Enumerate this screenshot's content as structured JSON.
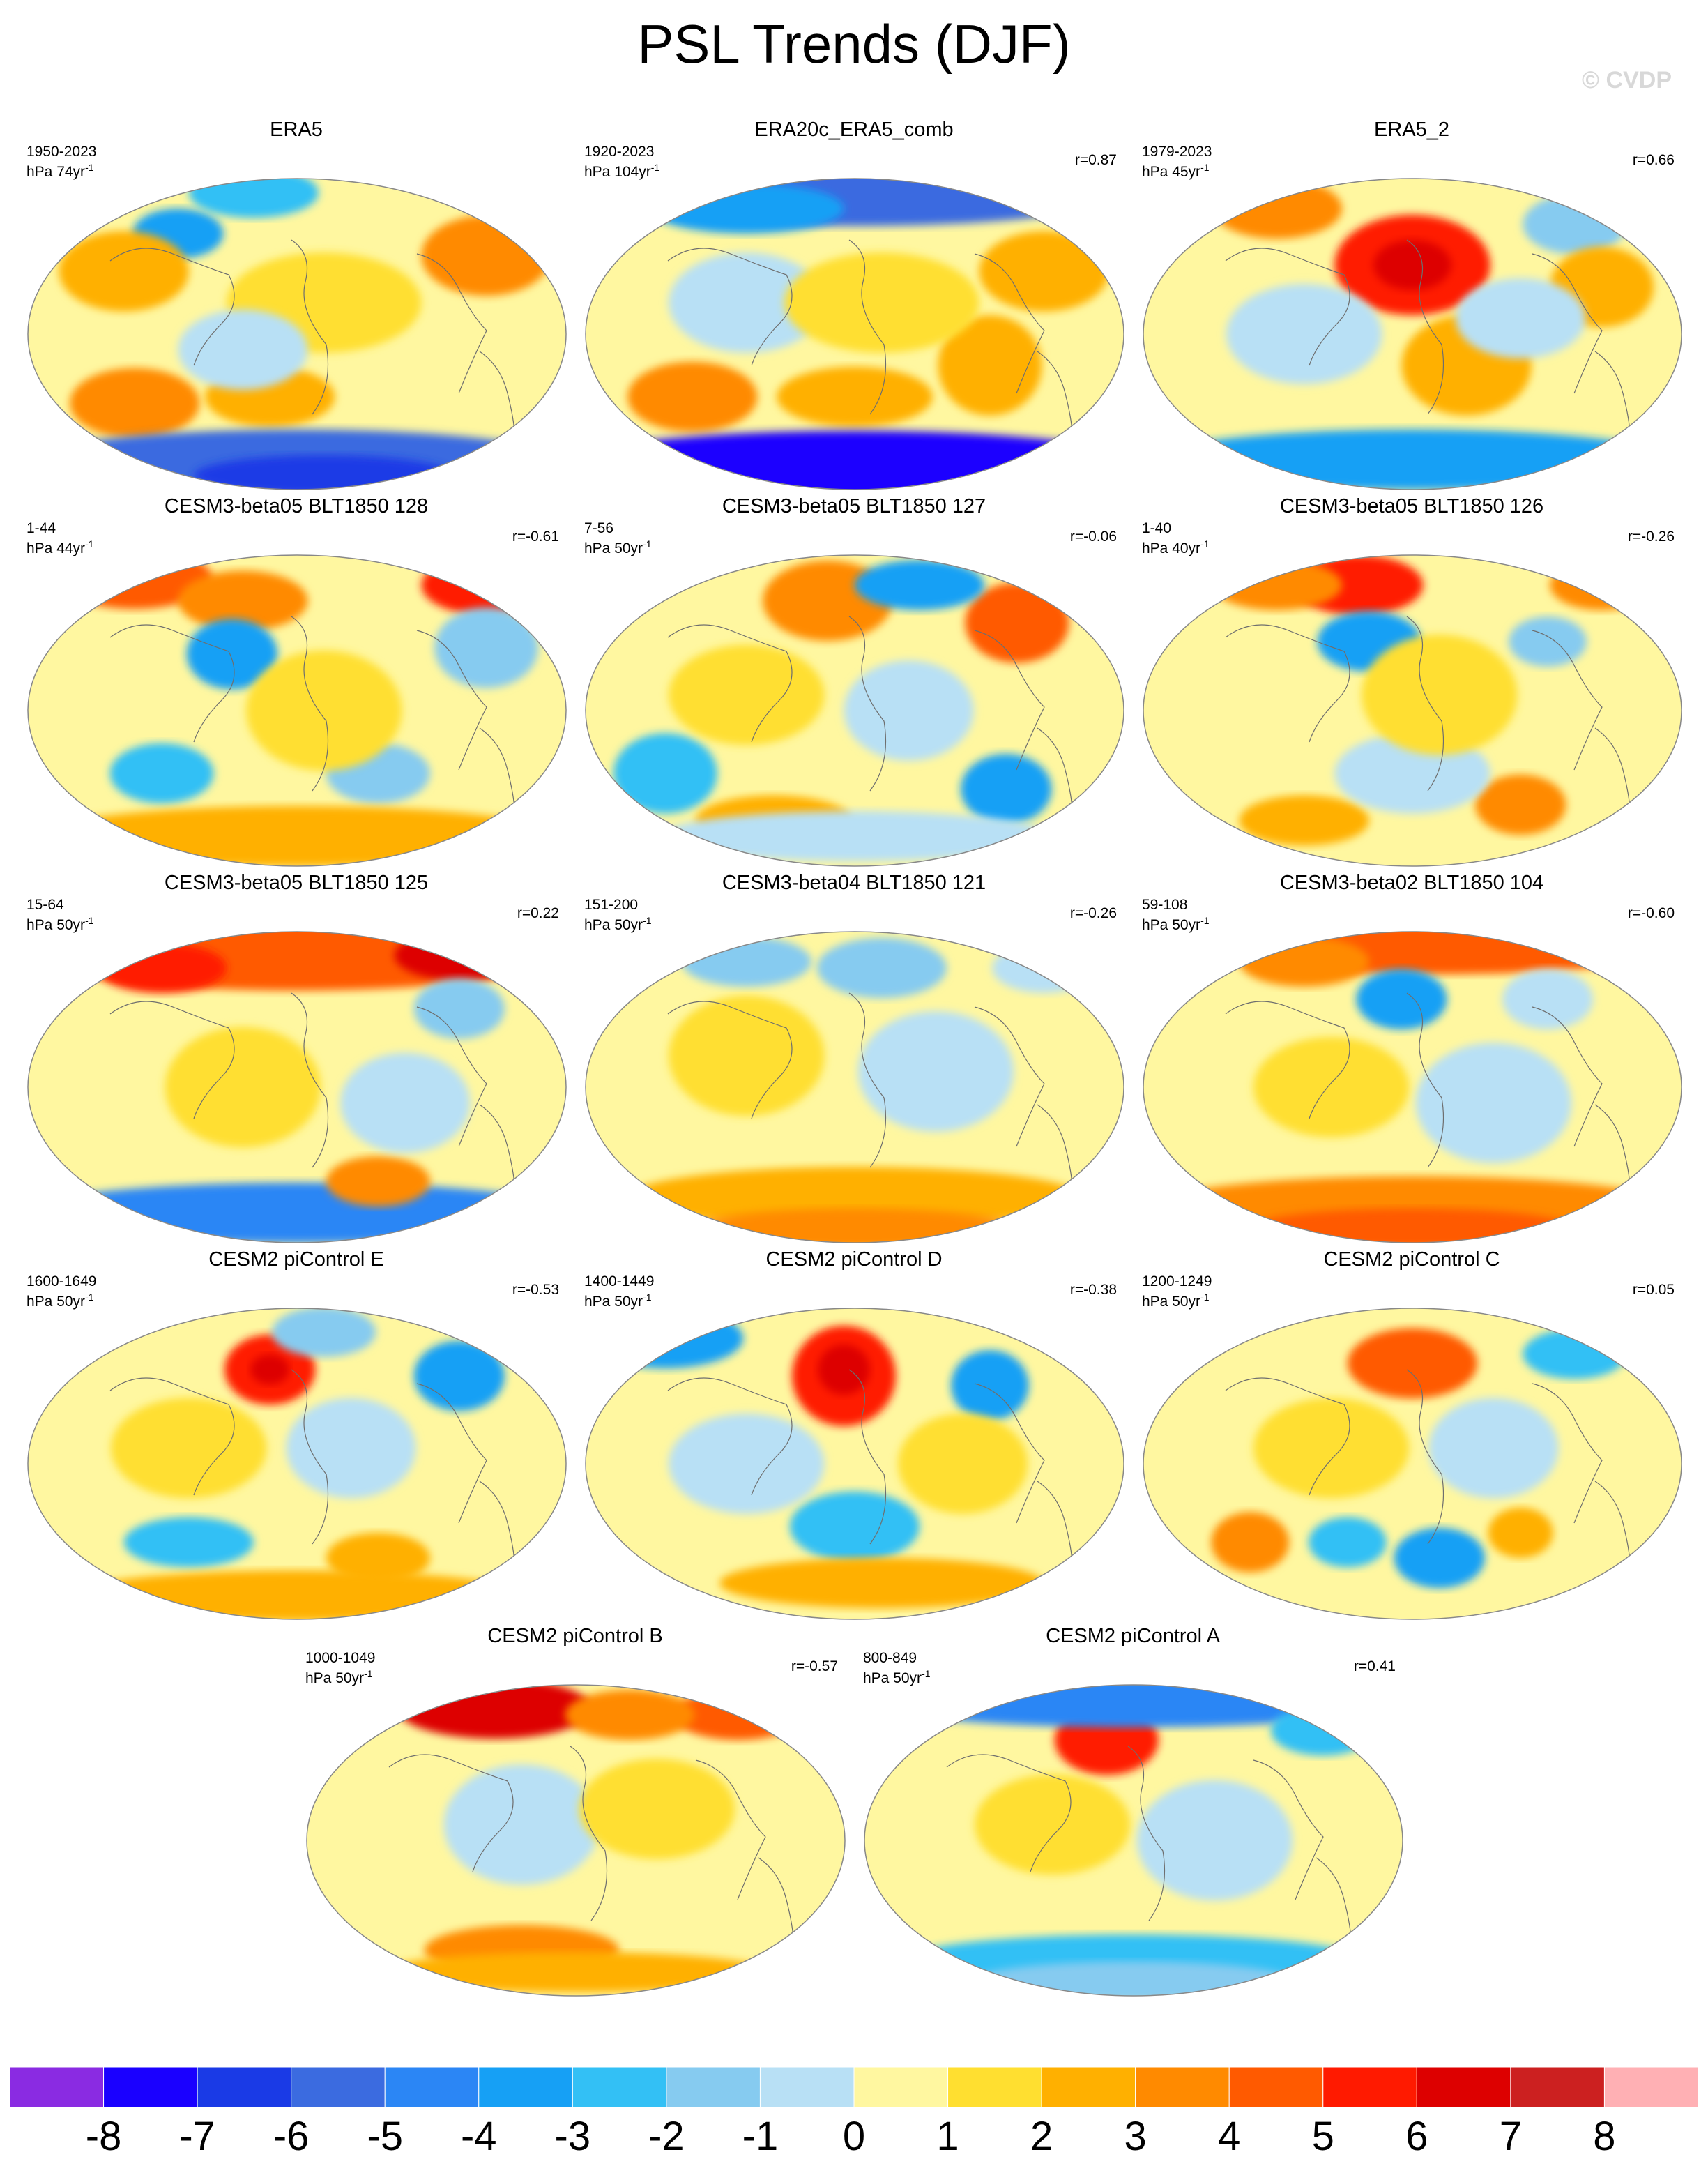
{
  "title": "PSL Trends (DJF)",
  "credit": "© CVDP",
  "panels": [
    {
      "title": "ERA5",
      "years": "1950-2023",
      "units_prefix": "hPa 74yr",
      "r": "",
      "blobs": [
        [
          0.28,
          0.18,
          0.07,
          0.05,
          -4
        ],
        [
          0.42,
          0.05,
          0.1,
          0.05,
          -3
        ],
        [
          0.85,
          0.25,
          0.1,
          0.08,
          3
        ],
        [
          0.18,
          0.3,
          0.1,
          0.08,
          2
        ],
        [
          0.2,
          0.72,
          0.1,
          0.07,
          3
        ],
        [
          0.45,
          0.7,
          0.1,
          0.06,
          2
        ],
        [
          0.5,
          0.9,
          0.4,
          0.06,
          -6
        ],
        [
          0.55,
          0.95,
          0.2,
          0.04,
          -7
        ],
        [
          0.55,
          0.4,
          0.15,
          0.1,
          1
        ],
        [
          0.4,
          0.55,
          0.1,
          0.08,
          -1
        ]
      ]
    },
    {
      "title": "ERA20c_ERA5_comb",
      "years": "1920-2023",
      "units_prefix": "hPa 104yr",
      "r": "r=0.87",
      "blobs": [
        [
          0.5,
          0.06,
          0.4,
          0.06,
          -6
        ],
        [
          0.3,
          0.1,
          0.15,
          0.05,
          -4
        ],
        [
          0.85,
          0.3,
          0.1,
          0.08,
          2
        ],
        [
          0.2,
          0.7,
          0.1,
          0.07,
          3
        ],
        [
          0.5,
          0.7,
          0.12,
          0.06,
          2
        ],
        [
          0.5,
          0.92,
          0.45,
          0.07,
          -8
        ],
        [
          0.75,
          0.6,
          0.08,
          0.1,
          2
        ],
        [
          0.3,
          0.4,
          0.12,
          0.1,
          -1
        ],
        [
          0.55,
          0.4,
          0.15,
          0.1,
          1
        ]
      ]
    },
    {
      "title": "ERA5_2",
      "years": "1979-2023",
      "units_prefix": "hPa 45yr",
      "r": "r=0.66",
      "blobs": [
        [
          0.5,
          0.28,
          0.12,
          0.1,
          5
        ],
        [
          0.5,
          0.28,
          0.06,
          0.05,
          6
        ],
        [
          0.25,
          0.1,
          0.1,
          0.06,
          3
        ],
        [
          0.8,
          0.15,
          0.08,
          0.06,
          -2
        ],
        [
          0.85,
          0.35,
          0.08,
          0.08,
          2
        ],
        [
          0.6,
          0.6,
          0.1,
          0.1,
          2
        ],
        [
          0.5,
          0.9,
          0.4,
          0.06,
          -4
        ],
        [
          0.3,
          0.5,
          0.12,
          0.1,
          -1
        ],
        [
          0.7,
          0.45,
          0.1,
          0.08,
          -1
        ]
      ]
    },
    {
      "title": "CESM3-beta05 BLT1850 128",
      "years": "1-44",
      "units_prefix": "hPa 44yr",
      "r": "r=-0.61",
      "blobs": [
        [
          0.2,
          0.08,
          0.12,
          0.06,
          4
        ],
        [
          0.85,
          0.1,
          0.1,
          0.06,
          5
        ],
        [
          0.4,
          0.15,
          0.1,
          0.06,
          3
        ],
        [
          0.38,
          0.32,
          0.07,
          0.07,
          -4
        ],
        [
          0.85,
          0.3,
          0.08,
          0.08,
          -2
        ],
        [
          0.25,
          0.7,
          0.08,
          0.06,
          -3
        ],
        [
          0.65,
          0.7,
          0.08,
          0.06,
          -2
        ],
        [
          0.5,
          0.9,
          0.4,
          0.06,
          2
        ],
        [
          0.55,
          0.5,
          0.12,
          0.12,
          1
        ]
      ]
    },
    {
      "title": "CESM3-beta05 BLT1850 127",
      "years": "7-56",
      "units_prefix": "hPa 50yr",
      "r": "r=-0.06",
      "blobs": [
        [
          0.45,
          0.15,
          0.1,
          0.08,
          3
        ],
        [
          0.8,
          0.22,
          0.08,
          0.08,
          4
        ],
        [
          0.62,
          0.1,
          0.1,
          0.05,
          -4
        ],
        [
          0.15,
          0.7,
          0.08,
          0.08,
          -3
        ],
        [
          0.78,
          0.75,
          0.07,
          0.07,
          -4
        ],
        [
          0.35,
          0.85,
          0.12,
          0.05,
          2
        ],
        [
          0.5,
          0.9,
          0.3,
          0.05,
          -1
        ],
        [
          0.3,
          0.45,
          0.12,
          0.1,
          1
        ],
        [
          0.6,
          0.5,
          0.1,
          0.1,
          -1
        ]
      ]
    },
    {
      "title": "CESM3-beta05 BLT1850 126",
      "years": "1-40",
      "units_prefix": "hPa 40yr",
      "r": "r=-0.26",
      "blobs": [
        [
          0.4,
          0.1,
          0.1,
          0.06,
          5
        ],
        [
          0.25,
          0.1,
          0.1,
          0.05,
          3
        ],
        [
          0.85,
          0.1,
          0.08,
          0.05,
          3
        ],
        [
          0.42,
          0.28,
          0.08,
          0.06,
          -4
        ],
        [
          0.75,
          0.28,
          0.06,
          0.05,
          -2
        ],
        [
          0.7,
          0.8,
          0.07,
          0.06,
          3
        ],
        [
          0.3,
          0.85,
          0.1,
          0.05,
          2
        ],
        [
          0.5,
          0.7,
          0.12,
          0.08,
          -1
        ],
        [
          0.55,
          0.45,
          0.12,
          0.12,
          1
        ]
      ]
    },
    {
      "title": "CESM3-beta05 BLT1850 125",
      "years": "15-64",
      "units_prefix": "hPa 50yr",
      "r": "r=0.22",
      "blobs": [
        [
          0.5,
          0.08,
          0.4,
          0.07,
          4
        ],
        [
          0.8,
          0.08,
          0.1,
          0.05,
          6
        ],
        [
          0.25,
          0.12,
          0.1,
          0.05,
          5
        ],
        [
          0.8,
          0.25,
          0.07,
          0.06,
          -2
        ],
        [
          0.5,
          0.9,
          0.42,
          0.06,
          -5
        ],
        [
          0.65,
          0.8,
          0.08,
          0.05,
          3
        ],
        [
          0.4,
          0.5,
          0.12,
          0.12,
          1
        ],
        [
          0.7,
          0.55,
          0.1,
          0.1,
          -1
        ]
      ]
    },
    {
      "title": "CESM3-beta04 BLT1850 121",
      "years": "151-200",
      "units_prefix": "hPa 50yr",
      "r": "r=-0.26",
      "blobs": [
        [
          0.3,
          0.1,
          0.1,
          0.05,
          -2
        ],
        [
          0.55,
          0.12,
          0.1,
          0.06,
          -2
        ],
        [
          0.85,
          0.12,
          0.08,
          0.05,
          -1
        ],
        [
          0.5,
          0.85,
          0.35,
          0.06,
          2
        ],
        [
          0.5,
          0.95,
          0.25,
          0.04,
          3
        ],
        [
          0.3,
          0.4,
          0.12,
          0.12,
          1
        ],
        [
          0.65,
          0.45,
          0.12,
          0.12,
          -1
        ]
      ]
    },
    {
      "title": "CESM3-beta02 BLT1850 104",
      "years": "59-108",
      "units_prefix": "hPa 50yr",
      "r": "r=-0.60",
      "blobs": [
        [
          0.55,
          0.06,
          0.35,
          0.05,
          4
        ],
        [
          0.3,
          0.1,
          0.1,
          0.05,
          3
        ],
        [
          0.48,
          0.22,
          0.07,
          0.06,
          -4
        ],
        [
          0.75,
          0.22,
          0.07,
          0.06,
          -1
        ],
        [
          0.5,
          0.88,
          0.4,
          0.06,
          3
        ],
        [
          0.5,
          0.95,
          0.25,
          0.04,
          4
        ],
        [
          0.35,
          0.5,
          0.12,
          0.1,
          1
        ],
        [
          0.65,
          0.55,
          0.12,
          0.12,
          -1
        ]
      ]
    },
    {
      "title": "CESM2 piControl E",
      "years": "1600-1649",
      "units_prefix": "hPa 50yr",
      "r": "r=-0.53",
      "blobs": [
        [
          0.45,
          0.2,
          0.07,
          0.07,
          5
        ],
        [
          0.45,
          0.2,
          0.03,
          0.03,
          6
        ],
        [
          0.8,
          0.22,
          0.07,
          0.07,
          -4
        ],
        [
          0.55,
          0.08,
          0.08,
          0.05,
          -2
        ],
        [
          0.3,
          0.75,
          0.1,
          0.05,
          -3
        ],
        [
          0.65,
          0.8,
          0.08,
          0.05,
          2
        ],
        [
          0.5,
          0.92,
          0.35,
          0.05,
          2
        ],
        [
          0.3,
          0.45,
          0.12,
          0.1,
          1
        ],
        [
          0.6,
          0.45,
          0.1,
          0.1,
          -1
        ]
      ]
    },
    {
      "title": "CESM2 piControl D",
      "years": "1400-1449",
      "units_prefix": "hPa 50yr",
      "r": "r=-0.38",
      "blobs": [
        [
          0.48,
          0.22,
          0.08,
          0.1,
          5
        ],
        [
          0.48,
          0.2,
          0.04,
          0.05,
          6
        ],
        [
          0.15,
          0.1,
          0.12,
          0.06,
          -4
        ],
        [
          0.75,
          0.25,
          0.06,
          0.07,
          -4
        ],
        [
          0.5,
          0.7,
          0.1,
          0.07,
          -3
        ],
        [
          0.55,
          0.88,
          0.25,
          0.05,
          2
        ],
        [
          0.3,
          0.5,
          0.12,
          0.1,
          -1
        ],
        [
          0.7,
          0.5,
          0.1,
          0.1,
          1
        ]
      ]
    },
    {
      "title": "CESM2 piControl C",
      "years": "1200-1249",
      "units_prefix": "hPa 50yr",
      "r": "r=0.05",
      "blobs": [
        [
          0.5,
          0.18,
          0.1,
          0.07,
          4
        ],
        [
          0.8,
          0.15,
          0.08,
          0.05,
          -3
        ],
        [
          0.2,
          0.75,
          0.06,
          0.06,
          3
        ],
        [
          0.38,
          0.75,
          0.06,
          0.05,
          -3
        ],
        [
          0.55,
          0.8,
          0.07,
          0.06,
          -4
        ],
        [
          0.7,
          0.72,
          0.05,
          0.05,
          2
        ],
        [
          0.35,
          0.45,
          0.12,
          0.1,
          1
        ],
        [
          0.65,
          0.45,
          0.1,
          0.1,
          -1
        ]
      ]
    },
    {
      "title": "CESM2 piControl B",
      "years": "1000-1049",
      "units_prefix": "hPa 50yr",
      "r": "r=-0.57",
      "blobs": [
        [
          0.35,
          0.08,
          0.15,
          0.06,
          6
        ],
        [
          0.8,
          0.1,
          0.1,
          0.05,
          4
        ],
        [
          0.6,
          0.1,
          0.1,
          0.05,
          3
        ],
        [
          0.4,
          0.85,
          0.15,
          0.05,
          3
        ],
        [
          0.5,
          0.92,
          0.3,
          0.04,
          2
        ],
        [
          0.4,
          0.45,
          0.12,
          0.12,
          -1
        ],
        [
          0.65,
          0.4,
          0.12,
          0.1,
          1
        ]
      ]
    },
    {
      "title": "CESM2 piControl A",
      "years": "800-849",
      "units_prefix": "hPa 50yr",
      "r": "r=0.41",
      "blobs": [
        [
          0.45,
          0.18,
          0.08,
          0.07,
          5
        ],
        [
          0.5,
          0.06,
          0.4,
          0.05,
          -5
        ],
        [
          0.85,
          0.15,
          0.08,
          0.05,
          -3
        ],
        [
          0.5,
          0.88,
          0.35,
          0.05,
          -3
        ],
        [
          0.5,
          0.95,
          0.25,
          0.04,
          -2
        ],
        [
          0.35,
          0.45,
          0.12,
          0.1,
          1
        ],
        [
          0.65,
          0.5,
          0.12,
          0.12,
          -1
        ]
      ]
    }
  ],
  "colorbar": {
    "labels": [
      "-8",
      "-7",
      "-6",
      "-5",
      "-4",
      "-3",
      "-2",
      "-1",
      "0",
      "1",
      "2",
      "3",
      "4",
      "5",
      "6",
      "7",
      "8"
    ],
    "colors": [
      "#8a2be2",
      "#1a00ff",
      "#1a3ae6",
      "#3b6be0",
      "#2b86f5",
      "#16a0f5",
      "#33c0f5",
      "#86cbf0",
      "#b8e0f5",
      "#fff7a0",
      "#ffdf30",
      "#ffb000",
      "#ff8a00",
      "#ff5a00",
      "#ff1a00",
      "#dd0000",
      "#cc2020",
      "#ffb0b4"
    ]
  }
}
